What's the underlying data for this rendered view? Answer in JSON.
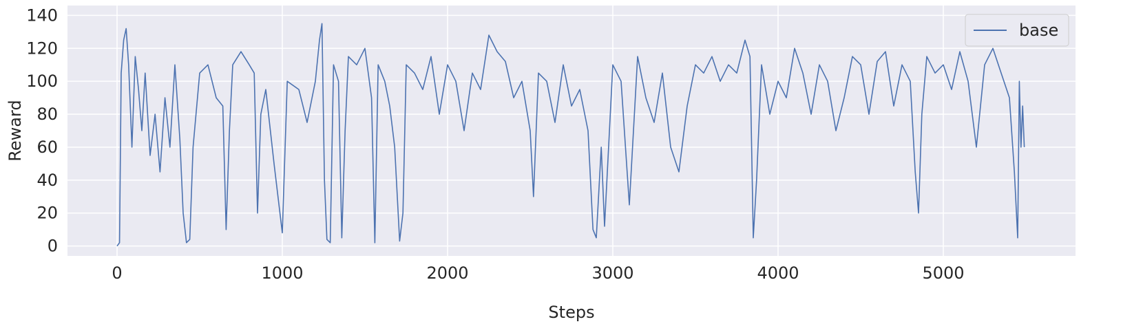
{
  "chart_data": {
    "type": "line",
    "title": "",
    "xlabel": "Steps",
    "ylabel": "Reward",
    "xlim": [
      -300,
      5800
    ],
    "ylim": [
      -6,
      146
    ],
    "xticks": [
      0,
      1000,
      2000,
      3000,
      4000,
      5000
    ],
    "yticks": [
      0,
      20,
      40,
      60,
      80,
      100,
      120,
      140
    ],
    "grid": true,
    "legend_position": "top-right",
    "colors": {
      "line": "#4c72b0",
      "background": "#eaeaf2",
      "grid": "#ffffff"
    },
    "series": [
      {
        "name": "base",
        "x": [
          0,
          15,
          25,
          40,
          55,
          70,
          90,
          110,
          130,
          150,
          170,
          200,
          230,
          260,
          290,
          320,
          350,
          380,
          400,
          420,
          440,
          460,
          500,
          550,
          600,
          640,
          660,
          680,
          700,
          750,
          800,
          830,
          850,
          870,
          900,
          950,
          1000,
          1030,
          1100,
          1150,
          1200,
          1225,
          1240,
          1255,
          1270,
          1290,
          1310,
          1340,
          1360,
          1380,
          1400,
          1450,
          1500,
          1540,
          1560,
          1580,
          1620,
          1650,
          1680,
          1710,
          1730,
          1750,
          1800,
          1850,
          1900,
          1950,
          2000,
          2050,
          2100,
          2150,
          2200,
          2250,
          2300,
          2350,
          2400,
          2450,
          2500,
          2520,
          2550,
          2600,
          2650,
          2700,
          2750,
          2800,
          2850,
          2880,
          2900,
          2930,
          2950,
          3000,
          3050,
          3100,
          3150,
          3200,
          3250,
          3300,
          3350,
          3400,
          3450,
          3500,
          3550,
          3600,
          3650,
          3700,
          3750,
          3800,
          3830,
          3850,
          3870,
          3900,
          3950,
          4000,
          4050,
          4100,
          4150,
          4200,
          4250,
          4300,
          4350,
          4400,
          4450,
          4500,
          4550,
          4600,
          4650,
          4700,
          4750,
          4800,
          4830,
          4850,
          4870,
          4900,
          4950,
          5000,
          5050,
          5100,
          5150,
          5200,
          5250,
          5300,
          5350,
          5400,
          5430,
          5450,
          5460,
          5470,
          5480,
          5490
        ],
        "y": [
          0,
          2,
          105,
          125,
          132,
          110,
          60,
          115,
          95,
          70,
          105,
          55,
          80,
          45,
          90,
          60,
          110,
          65,
          20,
          2,
          4,
          60,
          105,
          110,
          90,
          85,
          10,
          70,
          110,
          118,
          110,
          105,
          20,
          80,
          95,
          50,
          8,
          100,
          95,
          75,
          100,
          125,
          135,
          40,
          4,
          2,
          110,
          100,
          5,
          70,
          115,
          110,
          120,
          90,
          2,
          110,
          100,
          85,
          60,
          3,
          20,
          110,
          105,
          95,
          115,
          80,
          110,
          100,
          70,
          105,
          95,
          128,
          118,
          112,
          90,
          100,
          70,
          30,
          105,
          100,
          75,
          110,
          85,
          95,
          70,
          10,
          5,
          60,
          12,
          110,
          100,
          25,
          115,
          90,
          75,
          105,
          60,
          45,
          85,
          110,
          105,
          115,
          100,
          110,
          105,
          125,
          115,
          5,
          40,
          110,
          80,
          100,
          90,
          120,
          105,
          80,
          110,
          100,
          70,
          90,
          115,
          110,
          80,
          112,
          118,
          85,
          110,
          100,
          45,
          20,
          80,
          115,
          105,
          110,
          95,
          118,
          100,
          60,
          110,
          120,
          105,
          90,
          45,
          5,
          100,
          60,
          85,
          60
        ]
      }
    ],
    "legend": {
      "entries": [
        "base"
      ]
    }
  }
}
